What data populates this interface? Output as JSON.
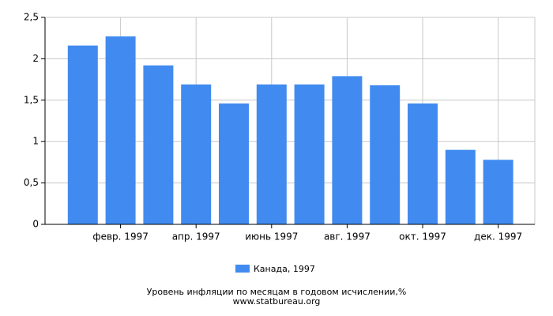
{
  "chart_data": {
    "type": "bar",
    "categories": [
      null,
      "февр. 1997",
      null,
      "апр. 1997",
      null,
      "июнь 1997",
      null,
      "авг. 1997",
      null,
      "окт. 1997",
      null,
      "дек. 1997"
    ],
    "series": [
      {
        "name": "Канада, 1997",
        "color": "#418bf0",
        "values": [
          2.16,
          2.27,
          1.92,
          1.69,
          1.46,
          1.69,
          1.69,
          1.79,
          1.68,
          1.46,
          0.9,
          0.78
        ]
      }
    ],
    "ylim": [
      0,
      2.5
    ],
    "yticks": [
      0,
      {
        "value": 0.5,
        "label": "0,5"
      },
      1,
      {
        "value": 1.5,
        "label": "1,5"
      },
      2,
      {
        "value": 2.5,
        "label": "2,5"
      }
    ],
    "grid": true,
    "caption": "Уровень инфляции по месяцам в годовом исчислении,%",
    "source": "www.statbureau.org"
  }
}
